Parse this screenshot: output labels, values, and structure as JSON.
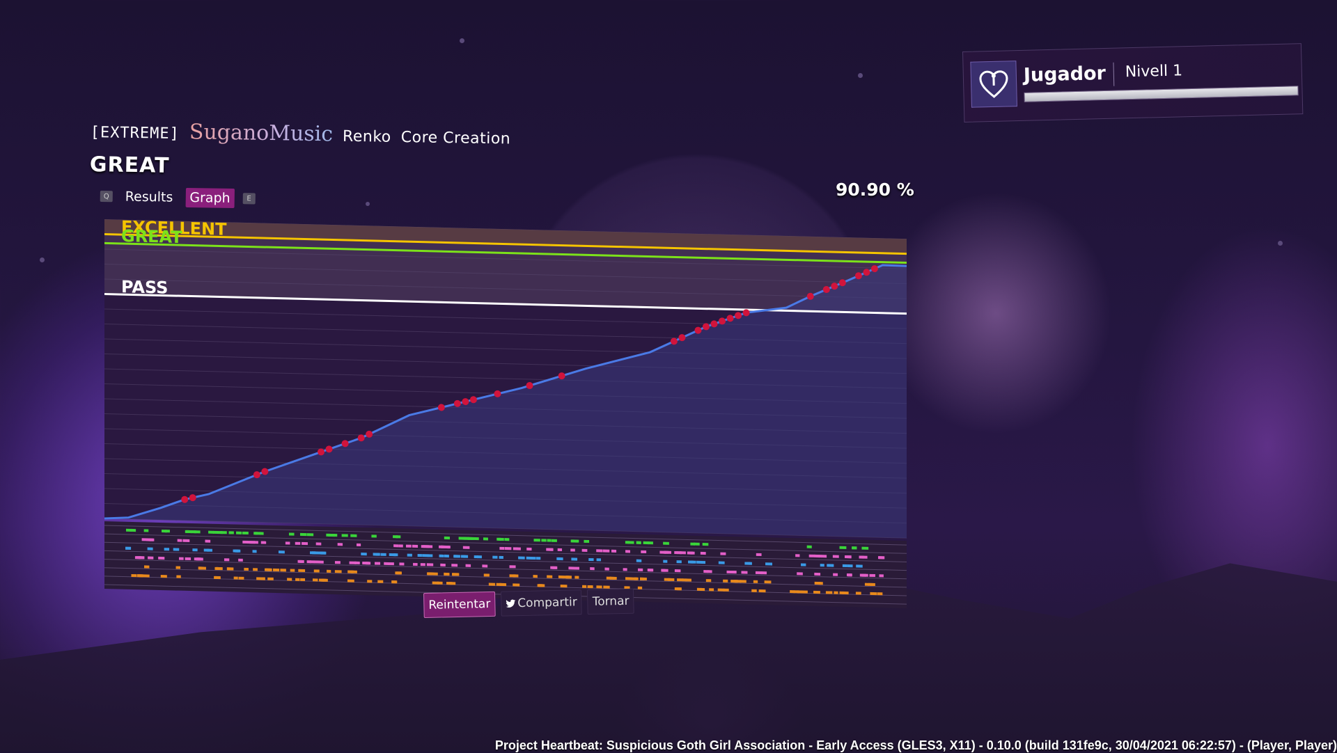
{
  "song": {
    "difficulty": "[EXTREME]",
    "artist": "SuganoMusic",
    "title": "Renko",
    "charter": "Core Creation"
  },
  "rank": "GREAT",
  "tabs": {
    "left_key": "Q",
    "results": "Results",
    "graph": "Graph",
    "right_key": "E"
  },
  "percent": "90.90 %",
  "chart_data": {
    "type": "line",
    "thresholds": [
      {
        "label": "EXCELLENT",
        "value": 95,
        "color": "#f5c400"
      },
      {
        "label": "GREAT",
        "value": 92,
        "color": "#7ce21a"
      },
      {
        "label": "PASS",
        "value": 75,
        "color": "#ffffff"
      }
    ],
    "ylim": [
      0,
      100
    ],
    "progress": [
      [
        0,
        0
      ],
      [
        0.03,
        0.5
      ],
      [
        0.07,
        4
      ],
      [
        0.1,
        7
      ],
      [
        0.13,
        9
      ],
      [
        0.2,
        17
      ],
      [
        0.26,
        23
      ],
      [
        0.32,
        29
      ],
      [
        0.38,
        37
      ],
      [
        0.45,
        42
      ],
      [
        0.52,
        47
      ],
      [
        0.6,
        54
      ],
      [
        0.68,
        60
      ],
      [
        0.75,
        69
      ],
      [
        0.8,
        74
      ],
      [
        0.85,
        76
      ],
      [
        0.88,
        80
      ],
      [
        0.93,
        86
      ],
      [
        0.97,
        91
      ],
      [
        1.0,
        90.9
      ]
    ],
    "misses": [
      0.1,
      0.11,
      0.19,
      0.2,
      0.27,
      0.28,
      0.3,
      0.32,
      0.33,
      0.42,
      0.44,
      0.45,
      0.46,
      0.49,
      0.53,
      0.57,
      0.71,
      0.72,
      0.74,
      0.75,
      0.76,
      0.77,
      0.78,
      0.79,
      0.8,
      0.88,
      0.9,
      0.91,
      0.92,
      0.94,
      0.95,
      0.96
    ]
  },
  "buttons": {
    "retry": "Reintentar",
    "share": "Compartir",
    "back": "Tornar"
  },
  "player": {
    "name": "Jugador",
    "level": "Nivell 1",
    "xp_fraction": 1.0
  },
  "footer": "Project Heartbeat: Suspicious Goth Girl Association - Early Access (GLES3, X11) - 0.10.0 (build 131fe9c, 30/04/2021  06:22:57) - (Player, Player)",
  "colors": {
    "accent": "#8a1f7c",
    "note_green": "#3ad43a",
    "note_pink": "#e35fc8",
    "note_blue": "#3a9ae6",
    "note_orange": "#e8891c",
    "miss": "#d1143c"
  }
}
